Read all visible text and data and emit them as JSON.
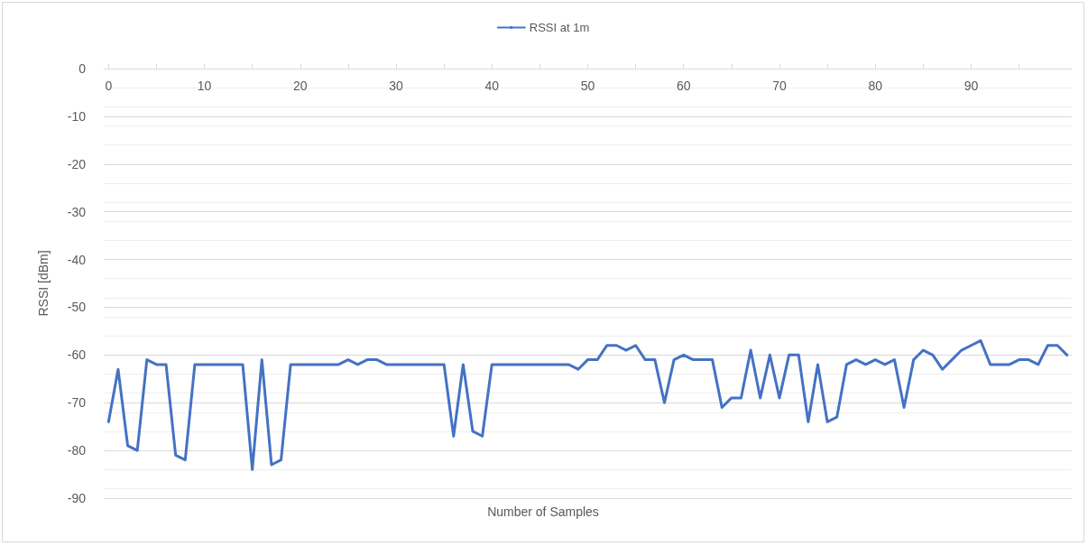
{
  "chart_data": {
    "type": "line",
    "xlabel": "Number of Samples",
    "ylabel": "RSSI [dBm]",
    "x": [
      0,
      1,
      2,
      3,
      4,
      5,
      6,
      7,
      8,
      9,
      10,
      11,
      12,
      13,
      14,
      15,
      16,
      17,
      18,
      19,
      20,
      21,
      22,
      23,
      24,
      25,
      26,
      27,
      28,
      29,
      30,
      31,
      32,
      33,
      34,
      35,
      36,
      37,
      38,
      39,
      40,
      41,
      42,
      43,
      44,
      45,
      46,
      47,
      48,
      49,
      50,
      51,
      52,
      53,
      54,
      55,
      56,
      57,
      58,
      59,
      60,
      61,
      62,
      63,
      64,
      65,
      66,
      67,
      68,
      69,
      70,
      71,
      72,
      73,
      74,
      75,
      76,
      77,
      78,
      79,
      80,
      81,
      82,
      83,
      84,
      85,
      86,
      87,
      88,
      89,
      90,
      91,
      92,
      93,
      94,
      95,
      96,
      97,
      98,
      99,
      100
    ],
    "series": [
      {
        "name": "RSSI at 1m",
        "color": "#4472c4",
        "values": [
          -74,
          -63,
          -79,
          -80,
          -61,
          -62,
          -62,
          -81,
          -82,
          -62,
          -62,
          -62,
          -62,
          -62,
          -62,
          -84,
          -61,
          -83,
          -82,
          -62,
          -62,
          -62,
          -62,
          -62,
          -62,
          -61,
          -62,
          -61,
          -61,
          -62,
          -62,
          -62,
          -62,
          -62,
          -62,
          -62,
          -77,
          -62,
          -76,
          -77,
          -62,
          -62,
          -62,
          -62,
          -62,
          -62,
          -62,
          -62,
          -62,
          -63,
          -61,
          -61,
          -58,
          -58,
          -59,
          -58,
          -61,
          -61,
          -70,
          -61,
          -60,
          -61,
          -61,
          -61,
          -71,
          -69,
          -69,
          -59,
          -69,
          -60,
          -69,
          -60,
          -60,
          -74,
          -62,
          -74,
          -73,
          -62,
          -61,
          -62,
          -61,
          -62,
          -61,
          -71,
          -61,
          -59,
          -60,
          -63,
          -61,
          -59,
          -58,
          -57,
          -62,
          -62,
          -62,
          -61,
          -61,
          -62,
          -58,
          -58,
          -60
        ]
      }
    ],
    "xlim": [
      -0.5,
      100.5
    ],
    "xticks": [
      0,
      10,
      20,
      30,
      40,
      50,
      60,
      70,
      80,
      90
    ],
    "ylim": [
      -90,
      0
    ],
    "yticks": [
      -90,
      -80,
      -70,
      -60,
      -50,
      -40,
      -30,
      -20,
      -10,
      0
    ],
    "grid": "y",
    "legend": "top",
    "marker": "none",
    "line_style": "solid"
  }
}
